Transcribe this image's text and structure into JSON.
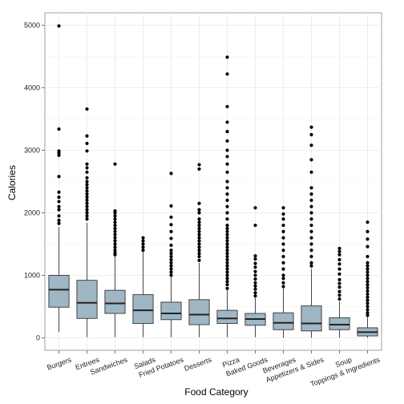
{
  "chart_data": {
    "type": "box",
    "title": "",
    "xlabel": "Food Category",
    "ylabel": "Calories",
    "ylim": [
      -200,
      5200
    ],
    "yticks": [
      0,
      1000,
      2000,
      3000,
      4000,
      5000
    ],
    "grid": true,
    "legend": "none",
    "colors": {
      "box_fill": "#9fb6c4",
      "box_stroke": "#333333",
      "outlier": "#000000",
      "grid": "#ebebeb",
      "panel_border": "#888888"
    },
    "categories": [
      "Burgers",
      "Entrees",
      "Sandwiches",
      "Salads",
      "Fried Potatoes",
      "Desserts",
      "Pizza",
      "Baked Goods",
      "Beverages",
      "Appetizers & Sides",
      "Soup",
      "Toppings & Ingredients"
    ],
    "boxes": [
      {
        "category": "Burgers",
        "whisker_low": 90,
        "q1": 490,
        "median": 770,
        "q3": 1000,
        "whisker_high": 1770,
        "outliers": [
          1830,
          1880,
          1950,
          2050,
          2100,
          2180,
          2250,
          2330,
          2580,
          2920,
          2960,
          2990,
          3340,
          4990
        ]
      },
      {
        "category": "Entrees",
        "whisker_low": 10,
        "q1": 310,
        "median": 560,
        "q3": 920,
        "whisker_high": 1840,
        "outliers": [
          1900,
          1950,
          2000,
          2050,
          2100,
          2150,
          2200,
          2250,
          2300,
          2350,
          2400,
          2450,
          2500,
          2560,
          2650,
          2720,
          2780,
          2990,
          3110,
          3230,
          3660
        ]
      },
      {
        "category": "Sandwiches",
        "whisker_low": 10,
        "q1": 390,
        "median": 550,
        "q3": 760,
        "whisker_high": 1300,
        "outliers": [
          1330,
          1360,
          1400,
          1450,
          1500,
          1550,
          1600,
          1650,
          1700,
          1750,
          1800,
          1850,
          1900,
          1950,
          2000,
          2030,
          2780
        ]
      },
      {
        "category": "Salads",
        "whisker_low": 10,
        "q1": 230,
        "median": 440,
        "q3": 690,
        "whisker_high": 1370,
        "outliers": [
          1400,
          1450,
          1500,
          1550,
          1600
        ]
      },
      {
        "category": "Fried Potatoes",
        "whisker_low": 10,
        "q1": 290,
        "median": 390,
        "q3": 570,
        "whisker_high": 970,
        "outliers": [
          1000,
          1050,
          1100,
          1150,
          1200,
          1250,
          1300,
          1350,
          1400,
          1480,
          1590,
          1700,
          1810,
          1930,
          2110,
          2630
        ]
      },
      {
        "category": "Desserts",
        "whisker_low": 10,
        "q1": 210,
        "median": 370,
        "q3": 610,
        "whisker_high": 1200,
        "outliers": [
          1240,
          1300,
          1350,
          1400,
          1450,
          1500,
          1550,
          1600,
          1650,
          1700,
          1750,
          1800,
          1850,
          1900,
          2000,
          2050,
          2150,
          2700,
          2770
        ]
      },
      {
        "category": "Pizza",
        "whisker_low": 10,
        "q1": 230,
        "median": 310,
        "q3": 440,
        "whisker_high": 760,
        "outliers": [
          790,
          850,
          900,
          950,
          1000,
          1050,
          1100,
          1150,
          1200,
          1250,
          1300,
          1350,
          1400,
          1450,
          1500,
          1550,
          1600,
          1650,
          1700,
          1750,
          1800,
          1900,
          2000,
          2100,
          2200,
          2300,
          2400,
          2500,
          2650,
          2780,
          2900,
          3000,
          3150,
          3300,
          3450,
          3700,
          4220,
          4490
        ]
      },
      {
        "category": "Baked Goods",
        "whisker_low": 10,
        "q1": 200,
        "median": 300,
        "q3": 390,
        "whisker_high": 640,
        "outliers": [
          670,
          720,
          780,
          830,
          880,
          940,
          1000,
          1060,
          1130,
          1190,
          1260,
          1310,
          1800,
          2080
        ]
      },
      {
        "category": "Beverages",
        "whisker_low": 0,
        "q1": 130,
        "median": 240,
        "q3": 400,
        "whisker_high": 790,
        "outliers": [
          820,
          880,
          950,
          1000,
          1100,
          1200,
          1300,
          1400,
          1500,
          1600,
          1700,
          1800,
          1900,
          1980,
          2080
        ]
      },
      {
        "category": "Appetizers & Sides",
        "whisker_low": 0,
        "q1": 110,
        "median": 230,
        "q3": 510,
        "whisker_high": 1100,
        "outliers": [
          1150,
          1200,
          1300,
          1400,
          1500,
          1600,
          1700,
          1800,
          1900,
          2000,
          2100,
          2200,
          2300,
          2400,
          2650,
          2850,
          3080,
          3250,
          3370
        ]
      },
      {
        "category": "Soup",
        "whisker_low": 0,
        "q1": 130,
        "median": 210,
        "q3": 320,
        "whisker_high": 580,
        "outliers": [
          620,
          680,
          740,
          810,
          870,
          930,
          1020,
          1100,
          1180,
          1250,
          1330,
          1380,
          1430
        ]
      },
      {
        "category": "Toppings & Ingredients",
        "whisker_low": 0,
        "q1": 30,
        "median": 90,
        "q3": 160,
        "whisker_high": 330,
        "outliers": [
          360,
          400,
          450,
          500,
          550,
          600,
          650,
          700,
          750,
          800,
          850,
          900,
          950,
          1000,
          1050,
          1100,
          1150,
          1200,
          1300,
          1460,
          1580,
          1700,
          1850
        ]
      }
    ]
  }
}
